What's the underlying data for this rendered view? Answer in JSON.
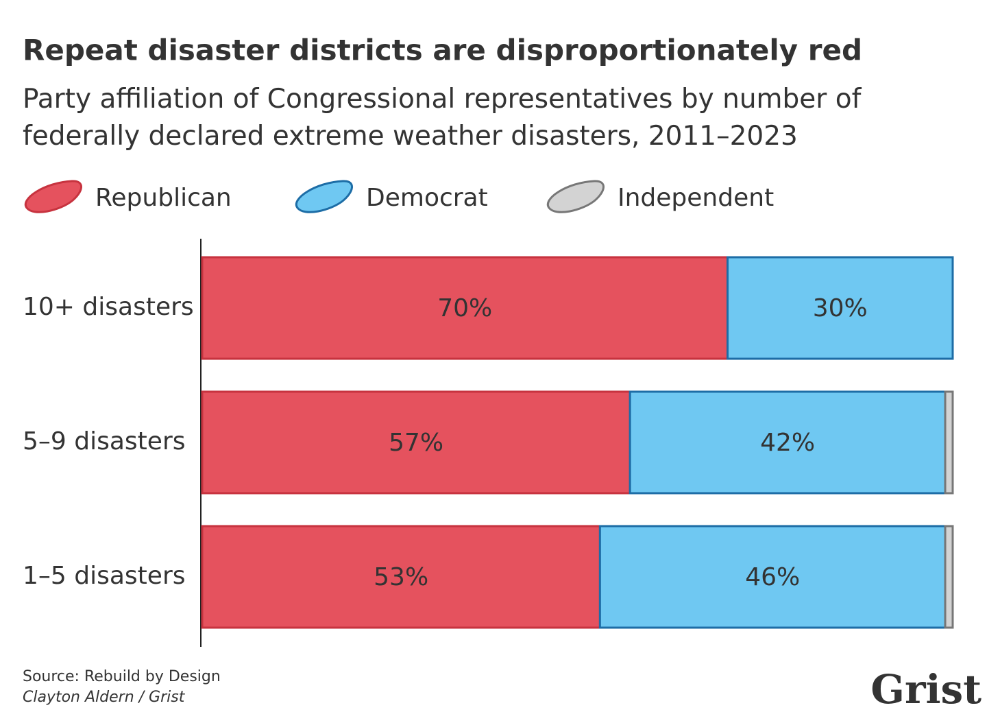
{
  "chart_data": {
    "type": "stacked_bar_horizontal",
    "title": "Repeat disaster districts are disproportionately red",
    "subtitle": "Party affiliation of Congressional representatives by number of federally declared extreme weather disasters, 2011–2023",
    "categories": [
      "10+ disasters",
      "5–9 disasters",
      "1–5 disasters"
    ],
    "series": [
      {
        "name": "Republican",
        "color": "#e5525e",
        "edge_color": "#c7333f",
        "label_color": "#ffffff",
        "values": [
          70,
          57,
          53
        ],
        "value_labels": [
          "70%",
          "57%",
          "53%"
        ]
      },
      {
        "name": "Democrat",
        "color": "#6fc8f2",
        "edge_color": "#1d6da6",
        "label_color": "#333333",
        "values": [
          30,
          42,
          46
        ],
        "value_labels": [
          "30%",
          "42%",
          "46%"
        ]
      },
      {
        "name": "Independent",
        "color": "#d3d3d3",
        "edge_color": "#777777",
        "values": [
          0,
          1,
          1
        ]
      }
    ],
    "xlim": [
      0,
      100
    ],
    "source": "Source: Rebuild by Design",
    "credit": "Clayton Aldern / Grist",
    "logo": "Grist"
  }
}
